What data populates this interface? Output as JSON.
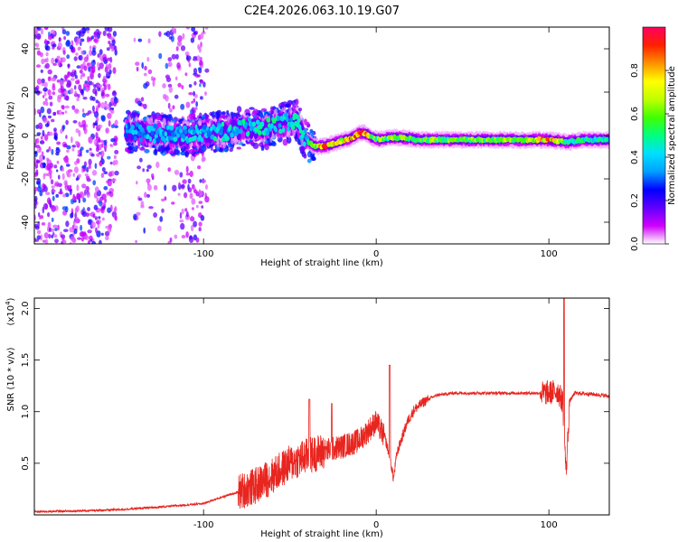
{
  "figure_title": "C2E4.2026.063.10.19.G07",
  "chart_data": [
    {
      "type": "heatmap",
      "title": "C2E4.2026.063.10.19.G07",
      "xlabel": "Height of straight line (km)",
      "ylabel": "Frequency (Hz)",
      "xlim": [
        -198,
        135
      ],
      "ylim": [
        -50,
        50
      ],
      "xticks": [
        -100,
        0,
        100
      ],
      "xtick_labels": [
        "-100",
        "0",
        "100"
      ],
      "yticks": [
        -40,
        -20,
        0,
        20,
        40
      ],
      "ytick_labels": [
        "-40",
        "-20",
        "0",
        "20",
        "40"
      ],
      "colorbar": {
        "label": "Normalized spectral amplitude",
        "range": [
          0,
          1
        ],
        "ticks": [
          0.0,
          0.2,
          0.4,
          0.6,
          0.8
        ],
        "tick_labels": [
          "0.0",
          "0.2",
          "0.4",
          "0.6",
          "0.8"
        ],
        "colors": [
          "#ffffff",
          "#d000ff",
          "#6000ff",
          "#0000ff",
          "#00a0ff",
          "#00e0ff",
          "#00ff80",
          "#40ff00",
          "#c0ff00",
          "#ffff00",
          "#ff9000",
          "#ff2000",
          "#ff0060"
        ]
      },
      "signal_trace_hz": {
        "x_km": [
          -145,
          -130,
          -115,
          -100,
          -85,
          -75,
          -65,
          -58,
          -52,
          -46,
          -42,
          -38,
          -34,
          -30,
          -26,
          -22,
          -18,
          -14,
          -10,
          -6,
          -2,
          2,
          8,
          15,
          25,
          40,
          60,
          80,
          100,
          110,
          120,
          135
        ],
        "freq": [
          2,
          1,
          0,
          1,
          2,
          4,
          3,
          5,
          6,
          7,
          0,
          -4,
          -5,
          -5,
          -4,
          -3,
          -2,
          -1,
          1,
          1,
          -1,
          -2,
          -1,
          -1,
          -2,
          -2,
          -2,
          -2,
          -2,
          -3,
          -2,
          -2
        ]
      },
      "signal_amplitude": {
        "x_km": [
          -145,
          -100,
          -60,
          -40,
          -30,
          -20,
          -10,
          0,
          20,
          60,
          90,
          100,
          110,
          135
        ],
        "amp": [
          0.35,
          0.4,
          0.45,
          0.4,
          0.85,
          0.7,
          0.9,
          0.6,
          0.6,
          0.6,
          0.65,
          0.85,
          0.5,
          0.45
        ]
      }
    },
    {
      "type": "line",
      "xlabel": "Height of straight line (km)",
      "ylabel": "SNR (10 * v/v)",
      "y_multiplier": "(x10",
      "y_multiplier_exp": "4",
      "xlim": [
        -198,
        135
      ],
      "ylim": [
        0,
        2.1
      ],
      "xticks": [
        -100,
        0,
        100
      ],
      "xtick_labels": [
        "-100",
        "0",
        "100"
      ],
      "yticks": [
        0.5,
        1.0,
        1.5,
        2.0
      ],
      "ytick_labels": [
        "0.5",
        "1.0",
        "1.5",
        "2.0"
      ],
      "series": [
        {
          "name": "SNR",
          "color": "#e8251f",
          "x": [
            -198,
            -170,
            -150,
            -130,
            -115,
            -100,
            -90,
            -80,
            -70,
            -60,
            -50,
            -40,
            -30,
            -20,
            -10,
            0,
            5,
            8,
            10,
            12,
            15,
            18,
            22,
            28,
            35,
            45,
            60,
            75,
            90,
            100,
            105,
            108,
            110,
            112,
            115,
            125,
            135
          ],
          "y": [
            0.03,
            0.04,
            0.05,
            0.07,
            0.09,
            0.11,
            0.17,
            0.22,
            0.28,
            0.38,
            0.5,
            0.57,
            0.62,
            0.66,
            0.72,
            0.9,
            0.75,
            0.55,
            0.35,
            0.6,
            0.75,
            0.9,
            1.02,
            1.1,
            1.16,
            1.18,
            1.18,
            1.18,
            1.18,
            1.18,
            1.2,
            1.1,
            0.4,
            1.1,
            1.18,
            1.17,
            1.15
          ]
        }
      ]
    }
  ]
}
